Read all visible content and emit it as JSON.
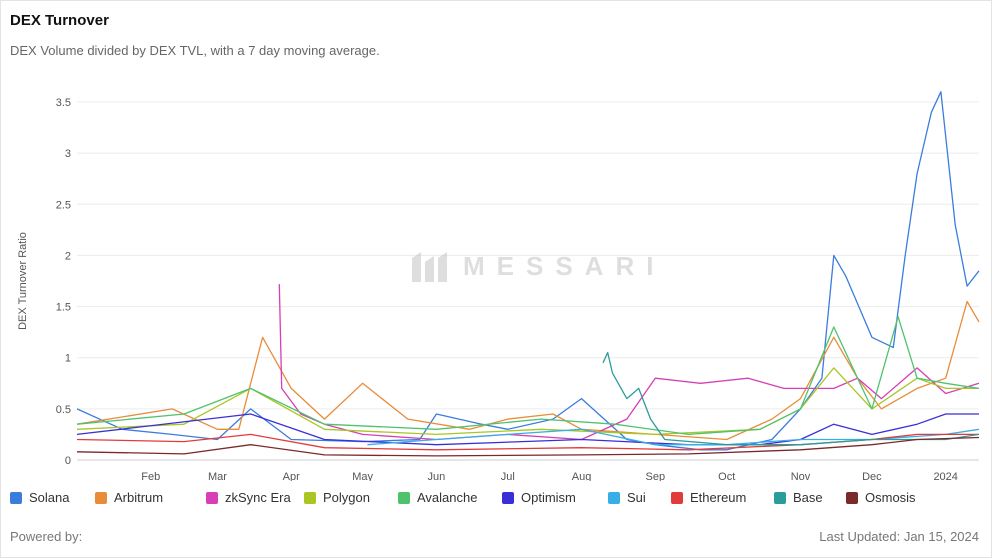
{
  "title": "DEX Turnover",
  "subtitle": "DEX Volume divided by DEX TVL, with a 7 day moving average.",
  "footer": {
    "powered_by": "Powered by:",
    "last_updated": "Last Updated: Jan 15, 2024"
  },
  "watermark": {
    "text": "MESSARI",
    "icon": "messari-logo-icon"
  },
  "chart_data": {
    "type": "line",
    "title": "DEX Turnover",
    "ylabel": "DEX Turnover Ratio",
    "xlabel": "",
    "ylim": [
      0,
      3.5
    ],
    "yticks": [
      "0",
      "0.5",
      "1",
      "1.5",
      "2",
      "2.5",
      "3",
      "3.5"
    ],
    "xticks": [
      "Feb",
      "Mar",
      "Apr",
      "May",
      "Jun",
      "Jul",
      "Aug",
      "Sep",
      "Oct",
      "Nov",
      "Dec",
      "2024"
    ],
    "grid": true,
    "legend_position": "bottom",
    "series": [
      {
        "name": "Solana",
        "color": "#3b7ddd",
        "x": [
          "2023-01-01",
          "2023-01-20",
          "2023-02-10",
          "2023-03-01",
          "2023-03-15",
          "2023-04-01",
          "2023-05-01",
          "2023-05-25",
          "2023-06-01",
          "2023-06-20",
          "2023-07-01",
          "2023-07-20",
          "2023-08-01",
          "2023-08-20",
          "2023-09-01",
          "2023-09-20",
          "2023-10-01",
          "2023-10-20",
          "2023-11-01",
          "2023-11-10",
          "2023-11-15",
          "2023-11-20",
          "2023-12-01",
          "2023-12-10",
          "2023-12-15",
          "2023-12-20",
          "2023-12-26",
          "2023-12-30",
          "2024-01-05",
          "2024-01-10",
          "2024-01-15"
        ],
        "y": [
          0.5,
          0.3,
          0.25,
          0.2,
          0.5,
          0.2,
          0.18,
          0.2,
          0.45,
          0.35,
          0.3,
          0.4,
          0.6,
          0.2,
          0.15,
          0.1,
          0.1,
          0.2,
          0.5,
          0.8,
          2.0,
          1.8,
          1.2,
          1.1,
          2.0,
          2.8,
          3.4,
          3.6,
          2.3,
          1.7,
          1.85
        ]
      },
      {
        "name": "Arbitrum",
        "color": "#e88c3a",
        "x": [
          "2023-01-01",
          "2023-02-10",
          "2023-03-01",
          "2023-03-10",
          "2023-03-20",
          "2023-04-01",
          "2023-04-15",
          "2023-05-01",
          "2023-05-20",
          "2023-06-15",
          "2023-07-01",
          "2023-07-20",
          "2023-08-01",
          "2023-09-01",
          "2023-10-01",
          "2023-10-20",
          "2023-11-01",
          "2023-11-15",
          "2023-11-25",
          "2023-12-05",
          "2023-12-20",
          "2024-01-01",
          "2024-01-10",
          "2024-01-15"
        ],
        "y": [
          0.35,
          0.5,
          0.3,
          0.3,
          1.2,
          0.7,
          0.4,
          0.75,
          0.4,
          0.3,
          0.4,
          0.45,
          0.3,
          0.25,
          0.2,
          0.4,
          0.6,
          1.2,
          0.8,
          0.5,
          0.7,
          0.8,
          1.55,
          1.35
        ]
      },
      {
        "name": "zkSync Era",
        "color": "#d63fb5",
        "x": [
          "2023-03-27",
          "2023-03-28",
          "2023-04-05",
          "2023-04-15",
          "2023-05-01",
          "2023-06-01",
          "2023-07-01",
          "2023-08-01",
          "2023-08-20",
          "2023-09-01",
          "2023-09-20",
          "2023-10-10",
          "2023-10-25",
          "2023-11-15",
          "2023-11-25",
          "2023-12-05",
          "2023-12-20",
          "2024-01-01",
          "2024-01-15"
        ],
        "y": [
          1.72,
          0.7,
          0.45,
          0.35,
          0.25,
          0.2,
          0.25,
          0.2,
          0.4,
          0.8,
          0.75,
          0.8,
          0.7,
          0.7,
          0.8,
          0.6,
          0.9,
          0.65,
          0.75
        ]
      },
      {
        "name": "Polygon",
        "color": "#a9c623",
        "x": [
          "2023-01-01",
          "2023-02-15",
          "2023-03-15",
          "2023-04-15",
          "2023-06-01",
          "2023-07-15",
          "2023-09-01",
          "2023-10-15",
          "2023-11-01",
          "2023-11-15",
          "2023-12-01",
          "2023-12-20",
          "2024-01-01",
          "2024-01-15"
        ],
        "y": [
          0.3,
          0.35,
          0.7,
          0.3,
          0.25,
          0.3,
          0.25,
          0.3,
          0.5,
          0.9,
          0.5,
          0.8,
          0.7,
          0.7
        ]
      },
      {
        "name": "Avalanche",
        "color": "#4fc26e",
        "x": [
          "2023-01-01",
          "2023-02-15",
          "2023-03-15",
          "2023-04-15",
          "2023-06-01",
          "2023-07-15",
          "2023-08-15",
          "2023-09-15",
          "2023-10-15",
          "2023-11-01",
          "2023-11-15",
          "2023-12-01",
          "2023-12-12",
          "2023-12-20",
          "2024-01-01",
          "2024-01-15"
        ],
        "y": [
          0.35,
          0.45,
          0.7,
          0.35,
          0.3,
          0.4,
          0.35,
          0.25,
          0.3,
          0.5,
          1.3,
          0.5,
          1.4,
          0.8,
          0.75,
          0.7
        ]
      },
      {
        "name": "Optimism",
        "color": "#3a2fd6",
        "x": [
          "2023-01-01",
          "2023-03-15",
          "2023-04-15",
          "2023-06-01",
          "2023-08-01",
          "2023-09-15",
          "2023-10-15",
          "2023-11-01",
          "2023-11-15",
          "2023-12-01",
          "2023-12-20",
          "2024-01-01",
          "2024-01-15"
        ],
        "y": [
          0.25,
          0.45,
          0.2,
          0.15,
          0.2,
          0.15,
          0.15,
          0.2,
          0.35,
          0.25,
          0.35,
          0.45,
          0.45
        ]
      },
      {
        "name": "Sui",
        "color": "#38aee6",
        "x": [
          "2023-05-03",
          "2023-06-01",
          "2023-07-01",
          "2023-08-01",
          "2023-09-01",
          "2023-10-01",
          "2023-11-01",
          "2023-12-01",
          "2024-01-01",
          "2024-01-15"
        ],
        "y": [
          0.15,
          0.2,
          0.25,
          0.3,
          0.15,
          0.15,
          0.2,
          0.2,
          0.25,
          0.3
        ]
      },
      {
        "name": "Ethereum",
        "color": "#e23b3b",
        "x": [
          "2023-01-01",
          "2023-02-15",
          "2023-03-15",
          "2023-04-15",
          "2023-06-01",
          "2023-08-01",
          "2023-09-15",
          "2023-11-01",
          "2023-12-01",
          "2023-12-20",
          "2024-01-15"
        ],
        "y": [
          0.2,
          0.18,
          0.25,
          0.12,
          0.1,
          0.12,
          0.1,
          0.15,
          0.2,
          0.25,
          0.25
        ]
      },
      {
        "name": "Base",
        "color": "#2a9d9a",
        "x": [
          "2023-08-10",
          "2023-08-12",
          "2023-08-14",
          "2023-08-20",
          "2023-08-25",
          "2023-08-30",
          "2023-09-05",
          "2023-10-01",
          "2023-11-01",
          "2023-12-01",
          "2024-01-01",
          "2024-01-15"
        ],
        "y": [
          0.95,
          1.05,
          0.85,
          0.6,
          0.7,
          0.4,
          0.2,
          0.15,
          0.15,
          0.2,
          0.2,
          0.25
        ]
      },
      {
        "name": "Osmosis",
        "color": "#7a2a2a",
        "x": [
          "2023-01-01",
          "2023-02-15",
          "2023-03-15",
          "2023-04-15",
          "2023-06-01",
          "2023-08-01",
          "2023-09-15",
          "2023-11-01",
          "2023-12-01",
          "2023-12-20",
          "2024-01-15"
        ],
        "y": [
          0.08,
          0.06,
          0.15,
          0.05,
          0.04,
          0.05,
          0.06,
          0.1,
          0.15,
          0.2,
          0.22
        ]
      }
    ]
  }
}
